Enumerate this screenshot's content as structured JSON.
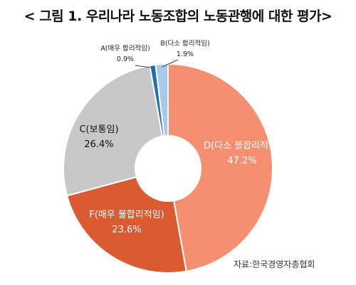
{
  "title": "< 그림 1. 우리나라 노동조합의 노동관행에 대한 평가>",
  "source": "자료:한국경영자총협회",
  "chart_data": {
    "type": "pie",
    "variant": "donut",
    "slices": [
      {
        "label": "D(다소 불합리적임)",
        "value": 47.2,
        "value_label": "47.2%",
        "color": "#F4906F"
      },
      {
        "label": "F(매우 불합리적임)",
        "value": 23.6,
        "value_label": "23.6%",
        "color": "#DA5B31"
      },
      {
        "label": "C(보통임)",
        "value": 26.4,
        "value_label": "26.4%",
        "color": "#C8C8C8"
      },
      {
        "label": "A(매우 합리적임)",
        "value": 0.9,
        "value_label": "0.9%",
        "color": "#1F6FB4"
      },
      {
        "label": "B(다소 합리적임)",
        "value": 1.9,
        "value_label": "1.9%",
        "color": "#A9C8EE"
      }
    ]
  }
}
